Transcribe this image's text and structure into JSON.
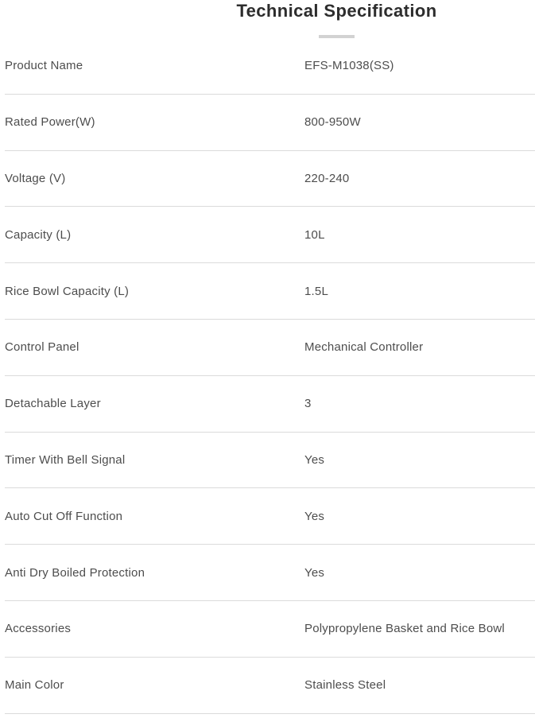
{
  "header": {
    "title": "Technical Specification"
  },
  "table": {
    "rows": [
      {
        "label": "Product Name",
        "value": "EFS-M1038(SS)"
      },
      {
        "label": "Rated Power(W)",
        "value": "800-950W"
      },
      {
        "label": "Voltage (V)",
        "value": "220-240"
      },
      {
        "label": "Capacity (L)",
        "value": "10L"
      },
      {
        "label": "Rice Bowl Capacity (L)",
        "value": "1.5L"
      },
      {
        "label": "Control Panel",
        "value": "Mechanical Controller"
      },
      {
        "label": "Detachable Layer",
        "value": "3"
      },
      {
        "label": "Timer With Bell Signal",
        "value": "Yes"
      },
      {
        "label": "Auto Cut Off Function",
        "value": "Yes"
      },
      {
        "label": "Anti Dry Boiled Protection",
        "value": "Yes"
      },
      {
        "label": "Accessories",
        "value": "Polypropylene Basket and Rice Bowl"
      },
      {
        "label": "Main Color",
        "value": "Stainless Steel"
      }
    ]
  },
  "colors": {
    "title-color": "#2d2d2d",
    "text-color": "#4d4d4d",
    "divider-color": "#dbdbdb",
    "accent-color": "#d2d2d2"
  }
}
